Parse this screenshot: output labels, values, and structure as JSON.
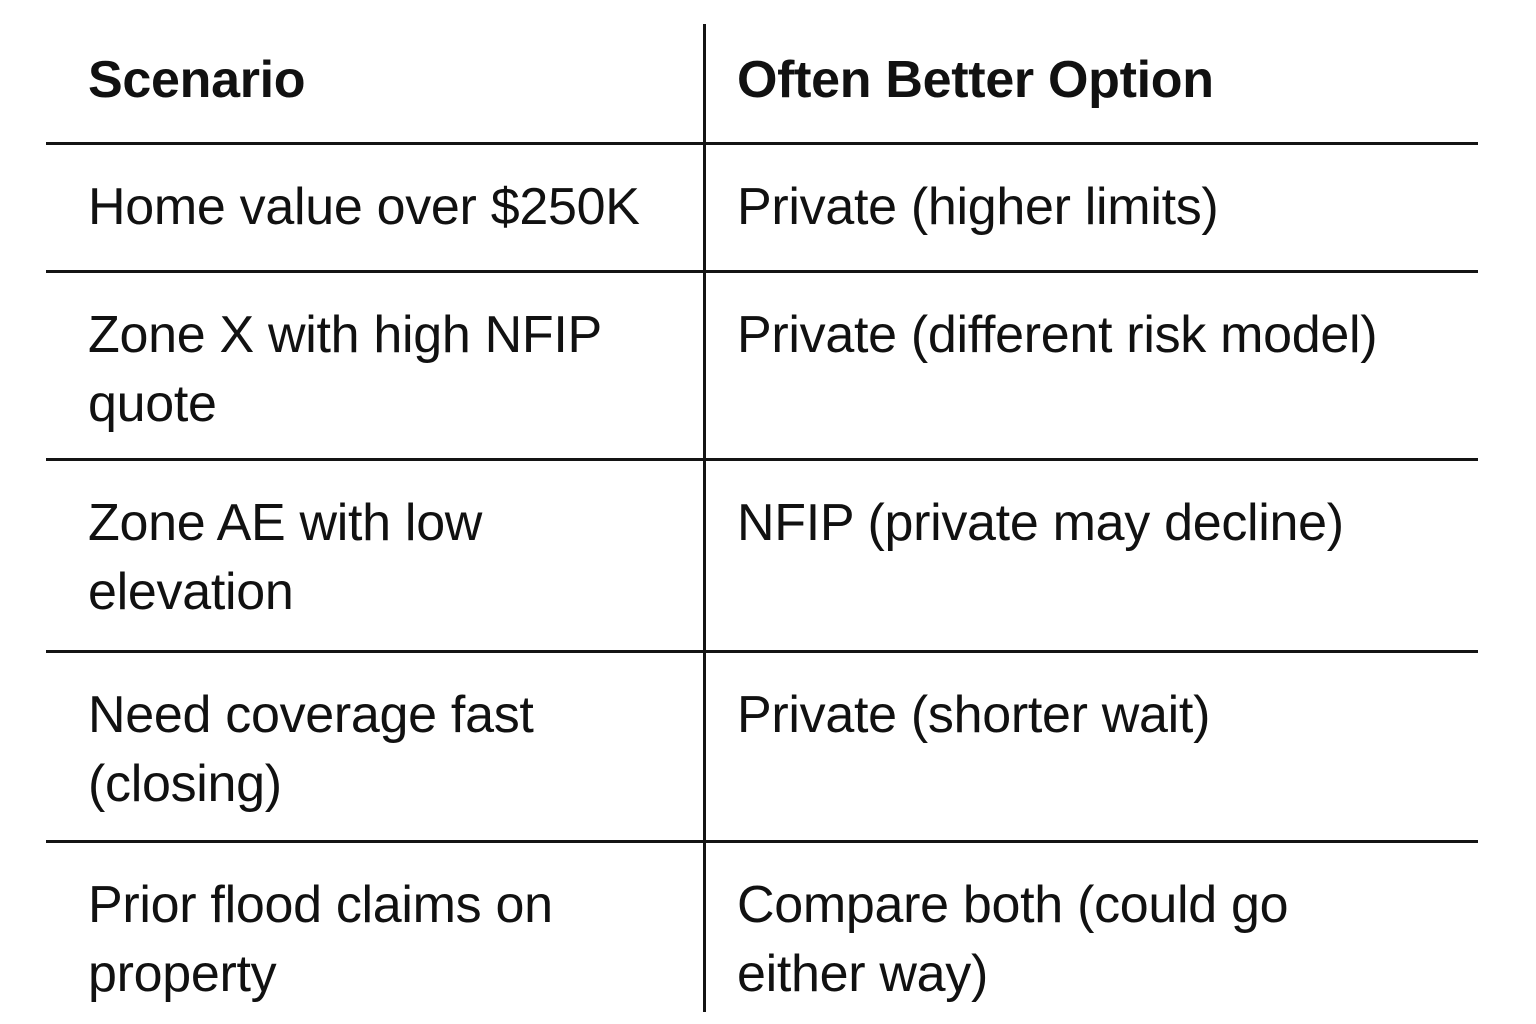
{
  "table": {
    "header": {
      "scenario": "Scenario",
      "option": "Often Better Option"
    },
    "rows": [
      {
        "scenario": "Home value over $250K",
        "option": "Private (higher limits)"
      },
      {
        "scenario": "Zone X with high NFIP\nquote",
        "option": "Private (different risk model)"
      },
      {
        "scenario": "Zone AE with low\nelevation",
        "option": "NFIP (private may decline)"
      },
      {
        "scenario": "Need coverage fast\n(closing)",
        "option": "Private (shorter wait)"
      },
      {
        "scenario": "Prior flood claims on\nproperty",
        "option": "Compare both (could go\neither way)"
      }
    ]
  },
  "chart_data": {
    "type": "table",
    "columns": [
      "Scenario",
      "Often Better Option"
    ],
    "rows": [
      [
        "Home value over $250K",
        "Private (higher limits)"
      ],
      [
        "Zone X with high NFIP quote",
        "Private (different risk model)"
      ],
      [
        "Zone AE with low elevation",
        "NFIP (private may decline)"
      ],
      [
        "Need coverage fast (closing)",
        "Private (shorter wait)"
      ],
      [
        "Prior flood claims on property",
        "Compare both (could go either way)"
      ]
    ],
    "layout": {
      "header_bold": true,
      "rules": "horizontal row separators plus single vertical column divider",
      "bottom_rule": false
    }
  },
  "colors": {
    "text": "#111111",
    "line": "#141414",
    "background": "#ffffff"
  }
}
